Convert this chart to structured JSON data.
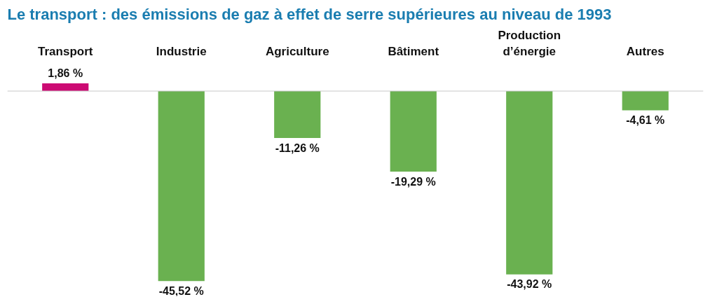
{
  "chart_data": {
    "type": "bar",
    "title": "Le transport : des émissions de gaz à effet de serre supérieures au niveau de 1993",
    "categories": [
      "Transport",
      "Industrie",
      "Agriculture",
      "Bâtiment",
      "Production d’énergie",
      "Autres"
    ],
    "values": [
      1.86,
      -45.52,
      -11.26,
      -19.29,
      -43.92,
      -4.61
    ],
    "colors": [
      "#cc0a73",
      "#6ab150",
      "#6ab150",
      "#6ab150",
      "#6ab150",
      "#6ab150"
    ],
    "value_labels": [
      "1,86 %",
      "-45,52 %",
      "-11,26 %",
      "-19,29 %",
      "-43,92 %",
      "-4,61 %"
    ]
  }
}
